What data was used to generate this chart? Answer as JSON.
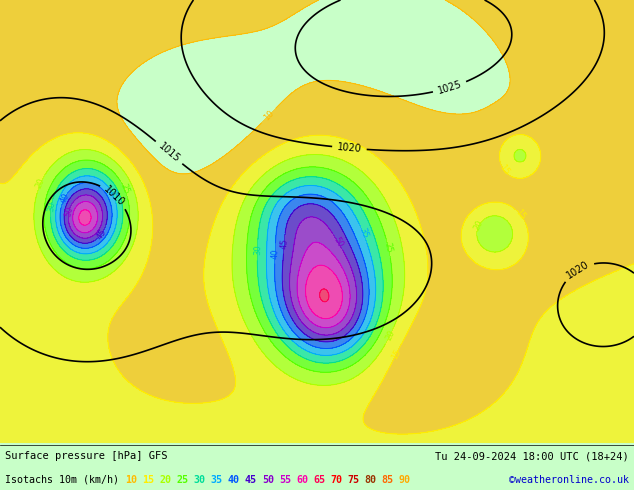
{
  "title_left": "Surface pressure [hPa] GFS",
  "title_right": "Tu 24-09-2024 18:00 UTC (18+24)",
  "legend_label": "Isotachs 10m (km/h)",
  "legend_values": [
    10,
    15,
    20,
    25,
    30,
    35,
    40,
    45,
    50,
    55,
    60,
    65,
    70,
    75,
    80,
    85,
    90
  ],
  "legend_colors": [
    "#ffbb00",
    "#ffee00",
    "#aaff00",
    "#55ff00",
    "#00dd99",
    "#00aaff",
    "#0055ff",
    "#4400cc",
    "#8800cc",
    "#cc00cc",
    "#ff00aa",
    "#ff0055",
    "#ff0000",
    "#cc0000",
    "#993300",
    "#ff6600",
    "#ffaa00"
  ],
  "bg_color": "#c8ffc8",
  "watermark": "©weatheronline.co.uk",
  "figsize": [
    6.34,
    4.9
  ],
  "dpi": 100
}
